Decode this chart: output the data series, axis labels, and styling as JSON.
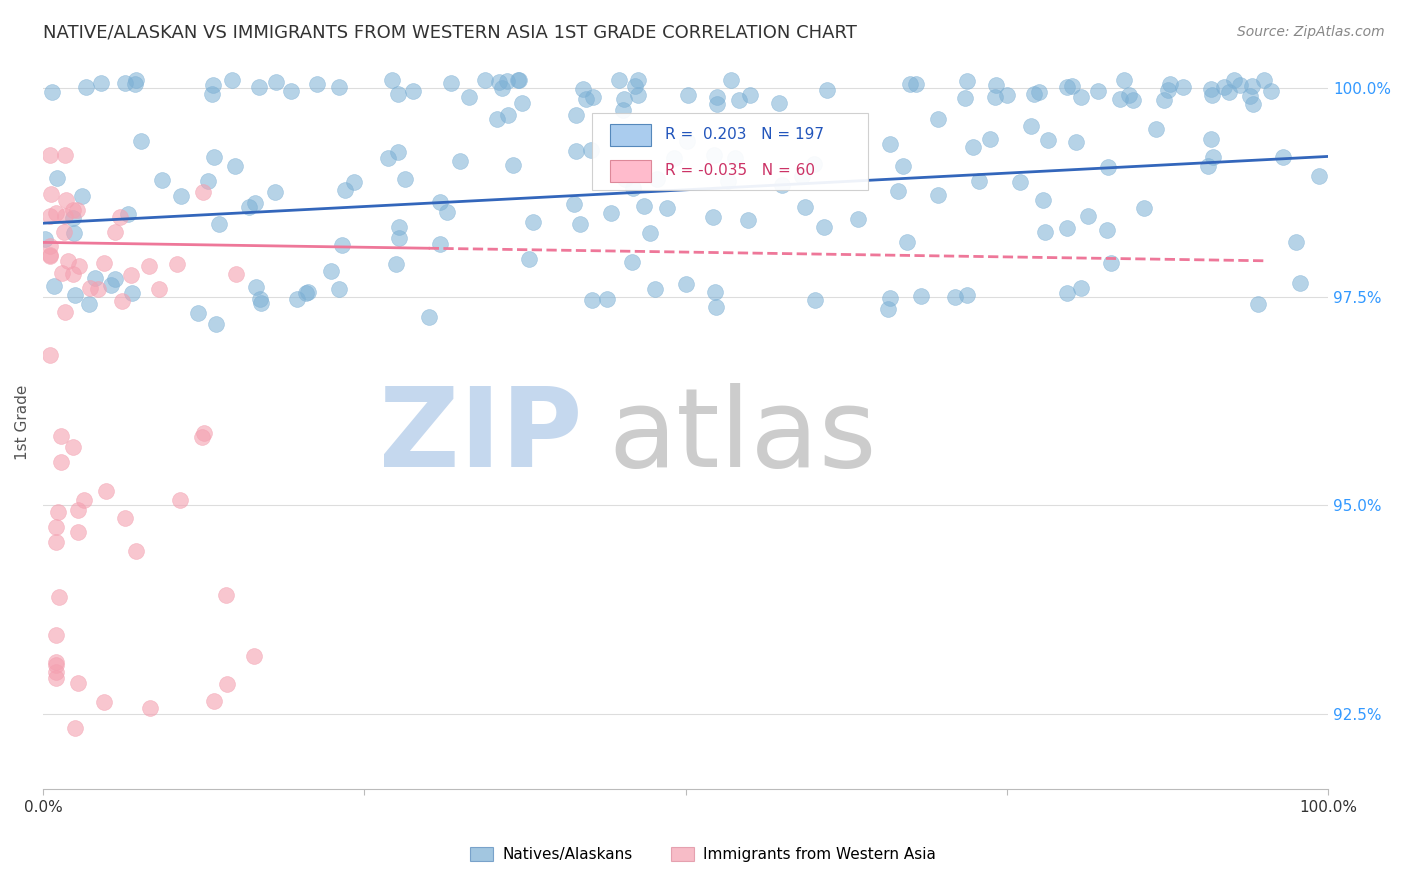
{
  "title": "NATIVE/ALASKAN VS IMMIGRANTS FROM WESTERN ASIA 1ST GRADE CORRELATION CHART",
  "source": "Source: ZipAtlas.com",
  "ylabel": "1st Grade",
  "ytick_labels": [
    "100.0%",
    "97.5%",
    "95.0%",
    "92.5%"
  ],
  "ytick_values": [
    1.0,
    0.975,
    0.95,
    0.925
  ],
  "xlim": [
    0.0,
    1.0
  ],
  "ylim": [
    0.916,
    1.004
  ],
  "legend_blue_r": "0.203",
  "legend_blue_n": "197",
  "legend_pink_r": "-0.035",
  "legend_pink_n": "60",
  "legend_label_blue": "Natives/Alaskans",
  "legend_label_pink": "Immigrants from Western Asia",
  "blue_color": "#7BAFD4",
  "pink_color": "#F4A0B0",
  "trendline_blue_color": "#3366BB",
  "trendline_pink_color": "#EE7799",
  "watermark_zip_color": "#C5D8EE",
  "watermark_atlas_color": "#CCCCCC",
  "background_color": "#FFFFFF",
  "grid_color": "#DDDDDD",
  "title_color": "#333333",
  "axis_label_color": "#555555",
  "ytick_color": "#3399FF",
  "source_color": "#888888",
  "blue_trendline_start_x": 0.0,
  "blue_trendline_start_y": 0.9838,
  "blue_trendline_end_x": 1.0,
  "blue_trendline_end_y": 0.9918,
  "pink_trendline_start_x": 0.0,
  "pink_trendline_start_y": 0.9815,
  "pink_trendline_solid_end_x": 0.3,
  "pink_trendline_solid_end_y": 0.9808,
  "pink_trendline_dash_end_x": 0.95,
  "pink_trendline_dash_end_y": 0.9793
}
